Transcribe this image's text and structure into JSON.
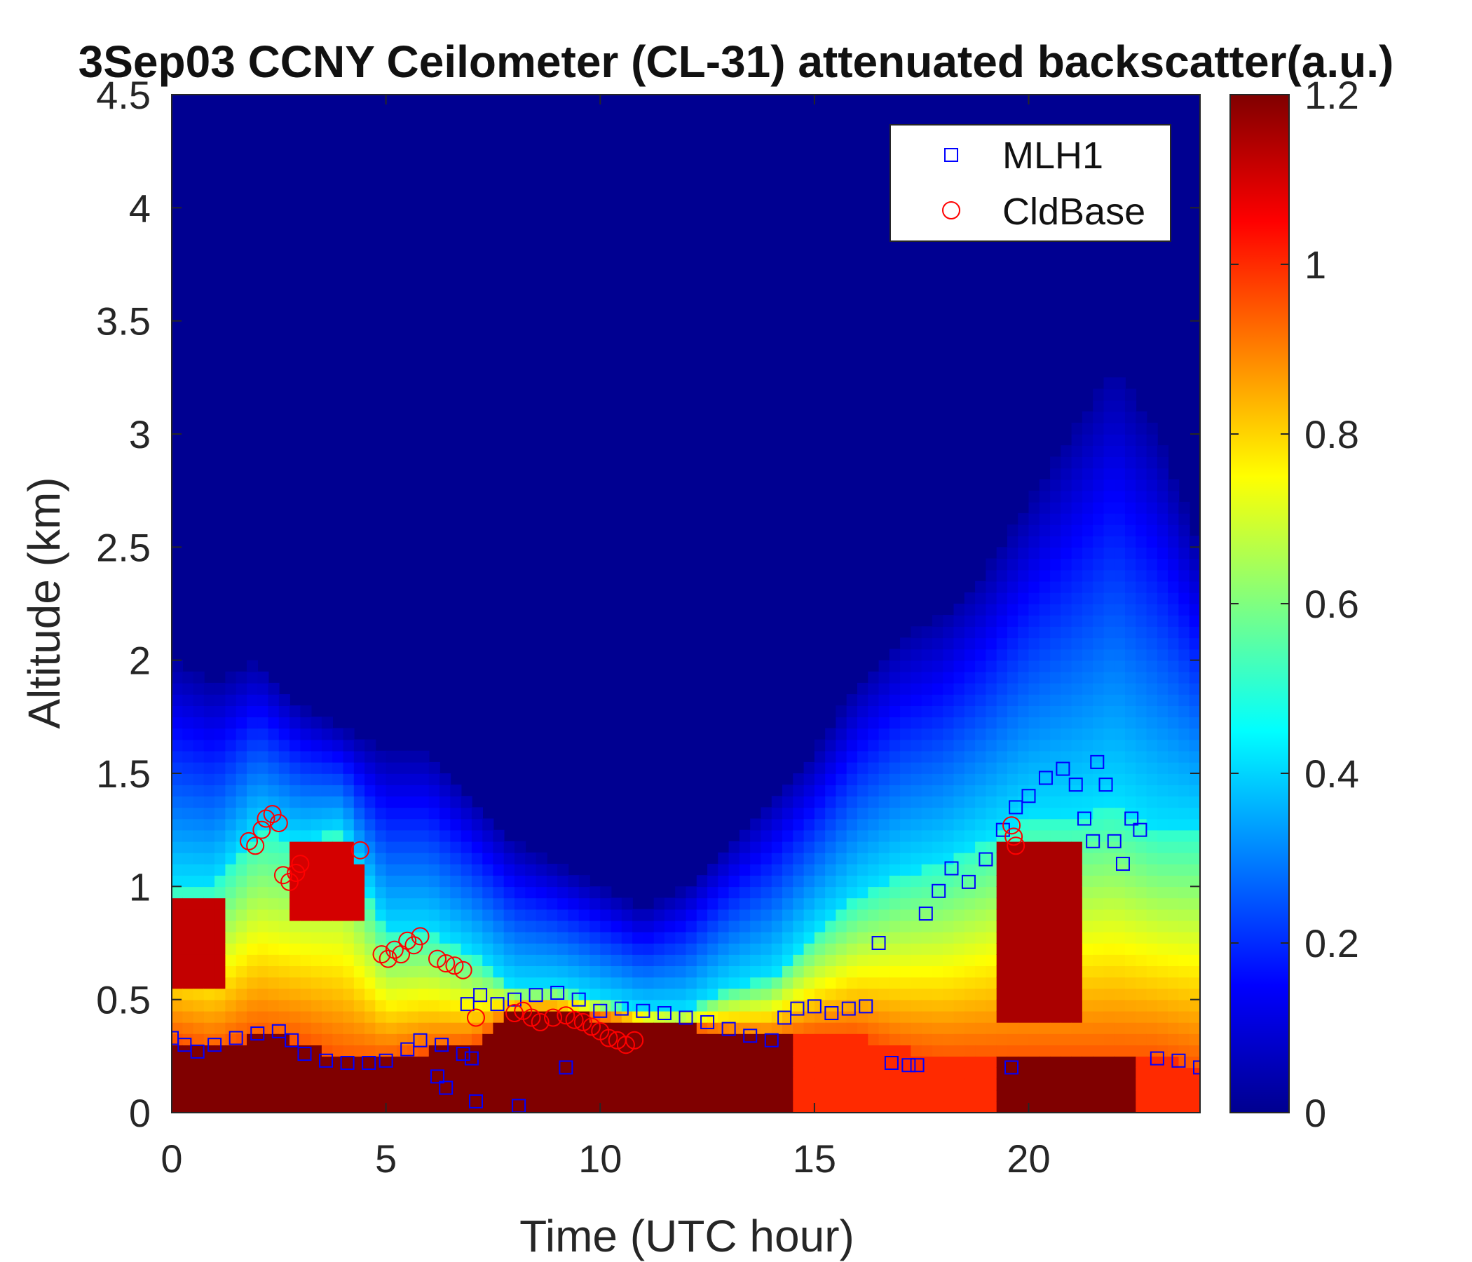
{
  "chart_data": {
    "type": "heatmap",
    "title": "3Sep03 CCNY Ceilometer (CL-31) attenuated backscatter(a.u.)",
    "xlabel": "Time (UTC hour)",
    "ylabel": "Altitude (km)",
    "xlim": [
      0,
      24
    ],
    "ylim": [
      0,
      4.5
    ],
    "x_ticks": [
      0,
      5,
      10,
      15,
      20
    ],
    "x_tick_labels": [
      "0",
      "5",
      "10",
      "15",
      "20"
    ],
    "y_ticks": [
      0,
      0.5,
      1,
      1.5,
      2,
      2.5,
      3,
      3.5,
      4,
      4.5
    ],
    "y_tick_labels": [
      "0",
      "0.5",
      "1",
      "1.5",
      "2",
      "2.5",
      "3",
      "3.5",
      "4",
      "4.5"
    ],
    "colorbar": {
      "colormap": "jet",
      "clim": [
        0,
        1.2
      ],
      "ticks": [
        0,
        0.2,
        0.4,
        0.6,
        0.8,
        1,
        1.2
      ],
      "tick_labels": [
        "0",
        "0.2",
        "0.4",
        "0.6",
        "0.8",
        "1",
        "1.2"
      ]
    },
    "legend": {
      "location": "top-right",
      "entries": [
        {
          "label": "MLH1",
          "marker": "square",
          "color": "#0000ff"
        },
        {
          "label": "CldBase",
          "marker": "circle",
          "color": "#ff0000"
        }
      ]
    },
    "layer_profile": {
      "description_units": "time (h) vs. heights (km)",
      "time": [
        0,
        1,
        2,
        3,
        4,
        5,
        6,
        7,
        8,
        9,
        10,
        11,
        12,
        13,
        14,
        15,
        16,
        17,
        18,
        19,
        20,
        21,
        22,
        23,
        24
      ],
      "surface_layer_top": [
        0.33,
        0.28,
        0.35,
        0.32,
        0.24,
        0.24,
        0.28,
        0.3,
        0.45,
        0.45,
        0.42,
        0.4,
        0.38,
        0.35,
        0.33,
        0.35,
        0.35,
        0.28,
        0.25,
        0.25,
        0.25,
        0.25,
        0.25,
        0.25,
        0.2
      ],
      "aerosol_layer_top": [
        1.0,
        1.0,
        1.25,
        1.2,
        1.25,
        0.8,
        0.8,
        0.7,
        0.55,
        0.55,
        0.5,
        0.45,
        0.45,
        0.55,
        0.6,
        0.8,
        0.95,
        1.05,
        1.1,
        1.2,
        1.3,
        1.3,
        1.35,
        1.25,
        1.25
      ],
      "mixed_top": [
        2.0,
        1.9,
        2.0,
        1.8,
        1.7,
        1.6,
        1.6,
        1.4,
        1.2,
        1.1,
        1.0,
        0.9,
        1.0,
        1.2,
        1.4,
        1.6,
        1.9,
        2.1,
        2.2,
        2.4,
        2.7,
        3.0,
        3.3,
        3.0,
        2.5
      ]
    },
    "series": [
      {
        "name": "MLH1",
        "marker": "square",
        "color": "#0000ff",
        "x": [
          0,
          0.3,
          0.6,
          1.0,
          1.5,
          2.0,
          2.5,
          2.8,
          3.1,
          3.6,
          4.1,
          4.6,
          5.0,
          5.5,
          5.8,
          6.3,
          6.8,
          7.0,
          7.2,
          7.6,
          8.0,
          8.5,
          9.0,
          9.5,
          10.0,
          10.5,
          11.0,
          11.5,
          12.0,
          12.5,
          13.0,
          13.5,
          14.0,
          14.3,
          14.6,
          15.0,
          15.4,
          15.8,
          16.2,
          16.5,
          16.8,
          17.2,
          17.4,
          17.6,
          17.9,
          18.2,
          18.6,
          19.0,
          19.4,
          19.7,
          20.0,
          20.4,
          20.8,
          21.1,
          21.3,
          21.5,
          21.6,
          21.8,
          22.0,
          22.2,
          22.4,
          22.6,
          23.0,
          23.5,
          24.0,
          6.2,
          6.4,
          6.9,
          7.1,
          8.1,
          9.2,
          19.6
        ],
        "y": [
          0.33,
          0.3,
          0.27,
          0.3,
          0.33,
          0.35,
          0.36,
          0.32,
          0.26,
          0.23,
          0.22,
          0.22,
          0.23,
          0.28,
          0.32,
          0.3,
          0.26,
          0.24,
          0.52,
          0.48,
          0.5,
          0.52,
          0.53,
          0.5,
          0.45,
          0.46,
          0.45,
          0.44,
          0.42,
          0.4,
          0.37,
          0.34,
          0.32,
          0.42,
          0.46,
          0.47,
          0.44,
          0.46,
          0.47,
          0.75,
          0.22,
          0.21,
          0.21,
          0.88,
          0.98,
          1.08,
          1.02,
          1.12,
          1.25,
          1.35,
          1.4,
          1.48,
          1.52,
          1.45,
          1.3,
          1.2,
          1.55,
          1.45,
          1.2,
          1.1,
          1.3,
          1.25,
          0.24,
          0.23,
          0.2,
          0.16,
          0.11,
          0.48,
          0.05,
          0.03,
          0.2,
          0.2
        ]
      },
      {
        "name": "CldBase",
        "marker": "circle",
        "color": "#ff0000",
        "x": [
          1.8,
          1.95,
          2.1,
          2.2,
          2.35,
          2.5,
          2.6,
          2.75,
          2.9,
          3.0,
          4.4,
          4.9,
          5.05,
          5.2,
          5.35,
          5.5,
          5.65,
          5.8,
          6.2,
          6.4,
          6.6,
          6.8,
          7.1,
          8.0,
          8.2,
          8.4,
          8.6,
          8.9,
          9.2,
          9.4,
          9.6,
          9.8,
          10.0,
          10.2,
          10.4,
          10.6,
          10.8,
          19.6,
          19.65,
          19.7
        ],
        "y": [
          1.2,
          1.18,
          1.25,
          1.3,
          1.32,
          1.28,
          1.05,
          1.02,
          1.06,
          1.1,
          1.16,
          0.7,
          0.68,
          0.72,
          0.7,
          0.76,
          0.74,
          0.78,
          0.68,
          0.66,
          0.65,
          0.63,
          0.42,
          0.44,
          0.45,
          0.42,
          0.4,
          0.42,
          0.43,
          0.41,
          0.4,
          0.38,
          0.36,
          0.33,
          0.32,
          0.3,
          0.32,
          1.27,
          1.22,
          1.18
        ]
      }
    ]
  }
}
